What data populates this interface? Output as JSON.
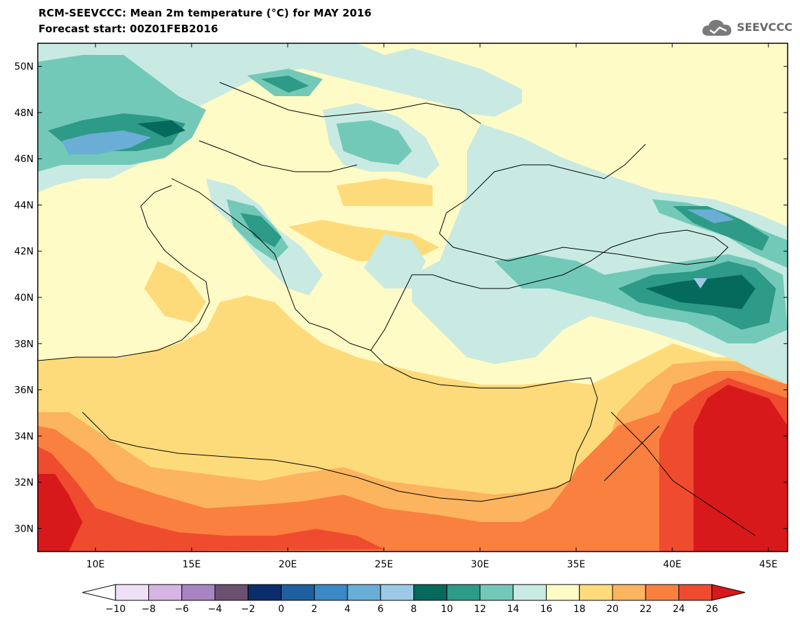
{
  "title_line1": "RCM-SEEVCCC: Mean 2m temperature (°C) for MAY 2016",
  "title_line2": "Forecast start: 00Z01FEB2016",
  "logo_text": "SEEVCCC",
  "map": {
    "lon_range": [
      7,
      46
    ],
    "lat_range": [
      29,
      51
    ],
    "lon_ticks": [
      "10E",
      "15E",
      "20E",
      "25E",
      "30E",
      "35E",
      "40E",
      "45E"
    ],
    "lat_ticks": [
      "30N",
      "32N",
      "34N",
      "36N",
      "38N",
      "40N",
      "42N",
      "44N",
      "46N",
      "48N",
      "50N"
    ]
  },
  "legend": {
    "labels": [
      "−10",
      "−8",
      "−6",
      "−4",
      "−2",
      "0",
      "2",
      "4",
      "6",
      "8",
      "10",
      "12",
      "14",
      "16",
      "18",
      "20",
      "22",
      "24",
      "26"
    ],
    "colors": [
      "#ffffff",
      "#efe1f5",
      "#d6b5e2",
      "#a984c2",
      "#6b5070",
      "#0c2d6b",
      "#1f5fa0",
      "#3a88c4",
      "#6aaed6",
      "#9ccae6",
      "#05695c",
      "#2e9a88",
      "#73c9b8",
      "#c8eae2",
      "#fffbc6",
      "#fedb7a",
      "#fdb45e",
      "#f9803f",
      "#ef4b2f",
      "#d7191c"
    ]
  }
}
